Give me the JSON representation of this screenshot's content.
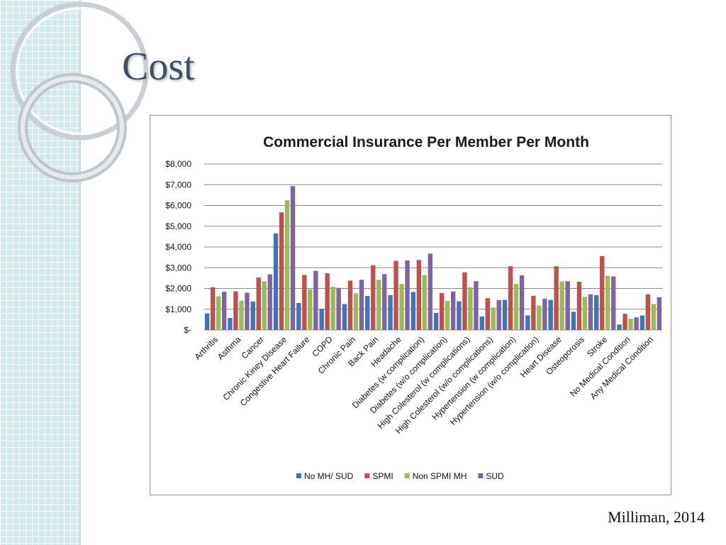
{
  "slide": {
    "title": "Cost",
    "source": "Milliman, 2014"
  },
  "colors": {
    "title": "#404e64",
    "left_band": "#d3e7ee",
    "series": [
      "#3f74b5",
      "#c0504d",
      "#9bbb59",
      "#8064a2"
    ]
  },
  "chart_data": {
    "type": "bar",
    "title": "Commercial Insurance Per Member Per Month",
    "xlabel": "",
    "ylabel": "",
    "ylim": [
      0,
      8000
    ],
    "yticks": [
      0,
      1000,
      2000,
      3000,
      4000,
      5000,
      6000,
      7000,
      8000
    ],
    "ytick_labels": [
      "$-",
      "$1,000",
      "$2,000",
      "$3,000",
      "$4,000",
      "$5,000",
      "$6,000",
      "$7,000",
      "$8,000"
    ],
    "grid": true,
    "legend": "bottom",
    "categories": [
      "Arthritis",
      "Asthma",
      "Cancer",
      "Chronic Kiney Disease",
      "Congestive Heart Failure",
      "COPD",
      "Chronic Pain",
      "Back Pain",
      "Headache",
      "Diabetes (w complication)",
      "Diabetes (w/o complication)",
      "High Colesterol (w complications)",
      "High Colesterol (w/o complications)",
      "Hypertension (w complication)",
      "Hypertension (w/o complication)",
      "Heart Disease",
      "Osteoporosis",
      "Stroke",
      "No Medical Condition",
      "Any Medical Condition"
    ],
    "series": [
      {
        "name": "No MH/ SUD",
        "values": [
          800,
          580,
          1370,
          4650,
          1300,
          1020,
          1250,
          1640,
          1680,
          1830,
          820,
          1380,
          650,
          1450,
          700,
          1450,
          880,
          1680,
          260,
          700
        ]
      },
      {
        "name": "SPMI",
        "values": [
          2060,
          1860,
          2530,
          5670,
          2650,
          2730,
          2380,
          3120,
          3330,
          3370,
          1780,
          2780,
          1530,
          3070,
          1650,
          3070,
          2320,
          3560,
          780,
          1720
        ]
      },
      {
        "name": "Non SPMI MH",
        "values": [
          1620,
          1410,
          2340,
          6250,
          1960,
          2080,
          1770,
          2420,
          2220,
          2650,
          1400,
          2060,
          1080,
          2220,
          1180,
          2340,
          1600,
          2610,
          540,
          1250
        ]
      },
      {
        "name": "SUD",
        "values": [
          1840,
          1800,
          2680,
          6930,
          2850,
          2030,
          2420,
          2690,
          3350,
          3680,
          1850,
          2350,
          1440,
          2630,
          1510,
          2350,
          1720,
          2580,
          610,
          1580
        ]
      }
    ]
  }
}
